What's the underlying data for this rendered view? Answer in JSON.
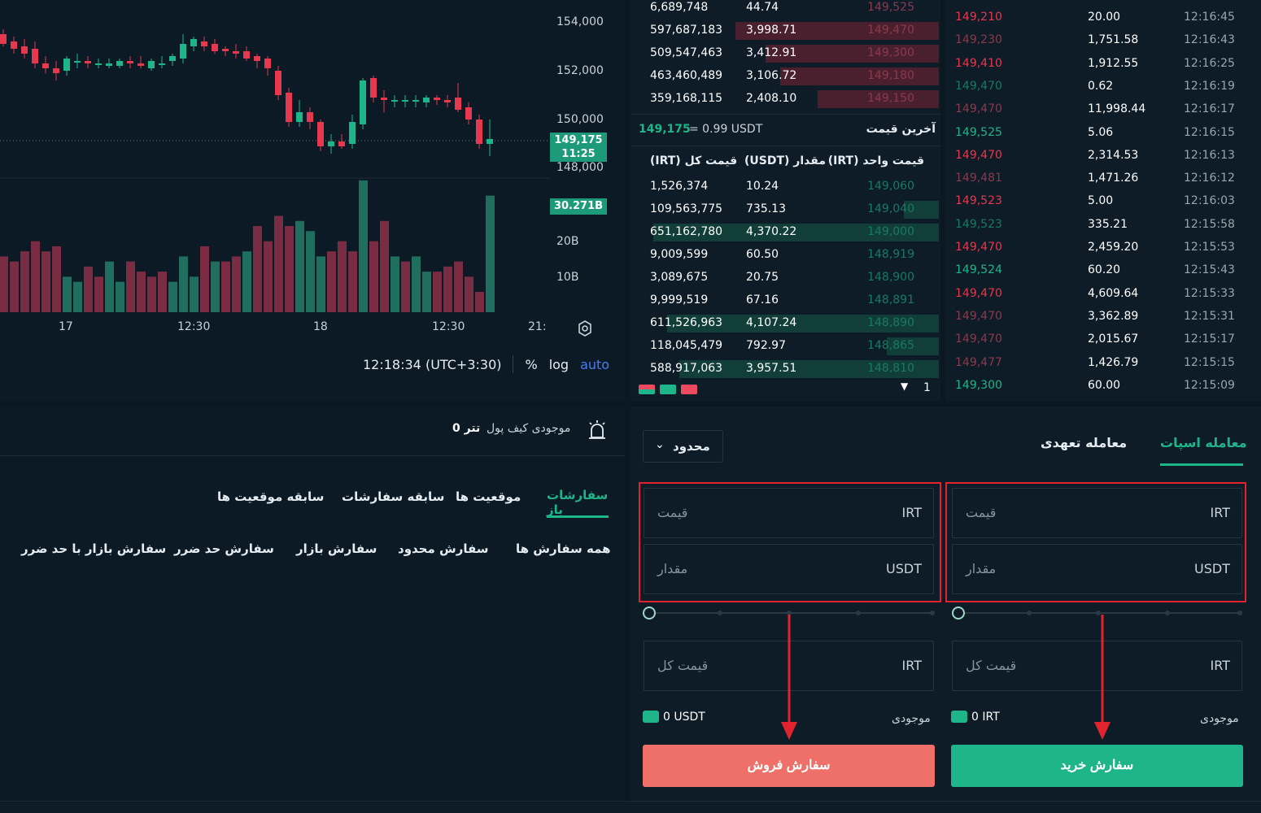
{
  "chart": {
    "price_axis": [
      "154,000",
      "152,000",
      "150,000",
      "148,000"
    ],
    "current_price": "149,175",
    "current_time": "11:25",
    "volume_axis": [
      "20B",
      "10B"
    ],
    "volume_current": "30.271B",
    "time_axis": [
      "17",
      "12:30",
      "18",
      "12:30",
      "21:"
    ],
    "clock": "12:18:34 (UTC+3:30)",
    "percent_label": "%",
    "log_label": "log",
    "auto_label": "auto"
  },
  "chart_data": {
    "type": "candlestick",
    "x": [
      "17",
      "12:30",
      "18",
      "12:30"
    ],
    "ylim": [
      147000,
      155000
    ],
    "candles": [
      {
        "o": 153500,
        "h": 153700,
        "c": 153100,
        "l": 153000
      },
      {
        "o": 153200,
        "h": 153400,
        "c": 152900,
        "l": 152700
      },
      {
        "o": 153000,
        "h": 153300,
        "c": 152700,
        "l": 152500
      },
      {
        "o": 152900,
        "h": 153200,
        "c": 152300,
        "l": 152100
      },
      {
        "o": 152300,
        "h": 152600,
        "c": 152100,
        "l": 151900
      },
      {
        "o": 152100,
        "h": 152400,
        "c": 151900,
        "l": 151600
      },
      {
        "o": 152000,
        "h": 152600,
        "c": 152500,
        "l": 151800
      },
      {
        "o": 152400,
        "h": 152700,
        "c": 152400,
        "l": 152100
      },
      {
        "o": 152400,
        "h": 152600,
        "c": 152300,
        "l": 152100
      },
      {
        "o": 152300,
        "h": 152500,
        "c": 152300,
        "l": 152100
      },
      {
        "o": 152200,
        "h": 152500,
        "c": 152300,
        "l": 152100
      },
      {
        "o": 152200,
        "h": 152500,
        "c": 152400,
        "l": 152100
      },
      {
        "o": 152400,
        "h": 152600,
        "c": 152300,
        "l": 152100
      },
      {
        "o": 152300,
        "h": 152600,
        "c": 152200,
        "l": 152100
      },
      {
        "o": 152100,
        "h": 152500,
        "c": 152400,
        "l": 152000
      },
      {
        "o": 152300,
        "h": 152600,
        "c": 152300,
        "l": 152100
      },
      {
        "o": 152400,
        "h": 152700,
        "c": 152600,
        "l": 152200
      },
      {
        "o": 152500,
        "h": 153500,
        "c": 153100,
        "l": 152300
      },
      {
        "o": 153000,
        "h": 153400,
        "c": 153300,
        "l": 152800
      },
      {
        "o": 153200,
        "h": 153400,
        "c": 153000,
        "l": 152800
      },
      {
        "o": 153100,
        "h": 153300,
        "c": 152800,
        "l": 152700
      },
      {
        "o": 152900,
        "h": 153000,
        "c": 152800,
        "l": 152600
      },
      {
        "o": 152800,
        "h": 153100,
        "c": 152700,
        "l": 152500
      },
      {
        "o": 152800,
        "h": 153000,
        "c": 152500,
        "l": 152400
      },
      {
        "o": 152600,
        "h": 152700,
        "c": 152400,
        "l": 152100
      },
      {
        "o": 152500,
        "h": 152600,
        "c": 152100,
        "l": 151800
      },
      {
        "o": 152000,
        "h": 152200,
        "c": 151000,
        "l": 150800
      },
      {
        "o": 151100,
        "h": 151300,
        "c": 149900,
        "l": 149700
      },
      {
        "o": 149900,
        "h": 150800,
        "c": 150300,
        "l": 149700
      },
      {
        "o": 150300,
        "h": 150500,
        "c": 149900,
        "l": 149600
      },
      {
        "o": 149900,
        "h": 150000,
        "c": 148900,
        "l": 148700
      },
      {
        "o": 148900,
        "h": 149400,
        "c": 149100,
        "l": 148600
      },
      {
        "o": 149100,
        "h": 149400,
        "c": 148900,
        "l": 148800
      },
      {
        "o": 149000,
        "h": 150200,
        "c": 149900,
        "l": 148800
      },
      {
        "o": 149800,
        "h": 151700,
        "c": 151600,
        "l": 149600
      },
      {
        "o": 151700,
        "h": 151800,
        "c": 150900,
        "l": 150700
      },
      {
        "o": 150900,
        "h": 151200,
        "c": 150800,
        "l": 150300
      },
      {
        "o": 150800,
        "h": 151000,
        "c": 150800,
        "l": 150500
      },
      {
        "o": 150800,
        "h": 151000,
        "c": 150800,
        "l": 150500
      },
      {
        "o": 150800,
        "h": 151000,
        "c": 150800,
        "l": 150500
      },
      {
        "o": 150700,
        "h": 151000,
        "c": 150900,
        "l": 150500
      },
      {
        "o": 150900,
        "h": 151000,
        "c": 150800,
        "l": 150600
      },
      {
        "o": 150800,
        "h": 151000,
        "c": 150700,
        "l": 150500
      },
      {
        "o": 150900,
        "h": 151500,
        "c": 150400,
        "l": 150300
      },
      {
        "o": 150500,
        "h": 150700,
        "c": 150000,
        "l": 149800
      },
      {
        "o": 150000,
        "h": 150200,
        "c": 149000,
        "l": 148800
      },
      {
        "o": 149000,
        "h": 150000,
        "c": 149200,
        "l": 148500
      }
    ],
    "volume": [
      {
        "v": 11,
        "up": false
      },
      {
        "v": 10,
        "up": false
      },
      {
        "v": 12,
        "up": false
      },
      {
        "v": 14,
        "up": false
      },
      {
        "v": 12,
        "up": false
      },
      {
        "v": 13,
        "up": false
      },
      {
        "v": 7,
        "up": true
      },
      {
        "v": 6,
        "up": true
      },
      {
        "v": 9,
        "up": false
      },
      {
        "v": 7,
        "up": false
      },
      {
        "v": 10,
        "up": true
      },
      {
        "v": 6,
        "up": true
      },
      {
        "v": 10,
        "up": false
      },
      {
        "v": 8,
        "up": false
      },
      {
        "v": 7,
        "up": false
      },
      {
        "v": 8,
        "up": false
      },
      {
        "v": 6,
        "up": true
      },
      {
        "v": 11,
        "up": true
      },
      {
        "v": 7,
        "up": true
      },
      {
        "v": 13,
        "up": false
      },
      {
        "v": 10,
        "up": true
      },
      {
        "v": 10,
        "up": false
      },
      {
        "v": 11,
        "up": false
      },
      {
        "v": 12,
        "up": true
      },
      {
        "v": 17,
        "up": false
      },
      {
        "v": 14,
        "up": false
      },
      {
        "v": 19,
        "up": false
      },
      {
        "v": 17,
        "up": false
      },
      {
        "v": 18,
        "up": true
      },
      {
        "v": 16,
        "up": true
      },
      {
        "v": 11,
        "up": true
      },
      {
        "v": 12,
        "up": false
      },
      {
        "v": 14,
        "up": false
      },
      {
        "v": 12,
        "up": false
      },
      {
        "v": 26,
        "up": true
      },
      {
        "v": 14,
        "up": false
      },
      {
        "v": 18,
        "up": false
      },
      {
        "v": 11,
        "up": true
      },
      {
        "v": 10,
        "up": false
      },
      {
        "v": 11,
        "up": true
      },
      {
        "v": 8,
        "up": true
      },
      {
        "v": 8,
        "up": false
      },
      {
        "v": 9,
        "up": false
      },
      {
        "v": 10,
        "up": false
      },
      {
        "v": 7,
        "up": false
      },
      {
        "v": 4,
        "up": false
      },
      {
        "v": 23,
        "up": true
      }
    ]
  },
  "orderbook": {
    "asks": [
      {
        "total": "6,689,748",
        "amount": "44.74",
        "price": "149,525",
        "fill": 0
      },
      {
        "total": "597,687,183",
        "amount": "3,998.71",
        "price": "149,470",
        "fill": 0.82
      },
      {
        "total": "509,547,463",
        "amount": "3,412.91",
        "price": "149,300",
        "fill": 0.7
      },
      {
        "total": "463,460,489",
        "amount": "3,106.72",
        "price": "149,180",
        "fill": 0.64
      },
      {
        "total": "359,168,115",
        "amount": "2,408.10",
        "price": "149,150",
        "fill": 0.49
      }
    ],
    "last_price": "149,175",
    "last_usdt": "= 0.99 USDT",
    "last_label": "آخرین قیمت",
    "headers": {
      "total": "(IRT) قیمت کل",
      "amount": "(USDT) مقدار",
      "price": "(IRT) قیمت واحد"
    },
    "bids": [
      {
        "total": "1,526,374",
        "amount": "10.24",
        "price": "149,060",
        "fill": 0
      },
      {
        "total": "109,563,775",
        "amount": "735.13",
        "price": "149,040",
        "fill": 0.12
      },
      {
        "total": "651,162,780",
        "amount": "4,370.22",
        "price": "149,000",
        "fill": 0.99
      },
      {
        "total": "9,009,599",
        "amount": "60.50",
        "price": "148,919",
        "fill": 0
      },
      {
        "total": "3,089,675",
        "amount": "20.75",
        "price": "148,900",
        "fill": 0
      },
      {
        "total": "9,999,519",
        "amount": "67.16",
        "price": "148,891",
        "fill": 0
      },
      {
        "total": "611,526,963",
        "amount": "4,107.24",
        "price": "148,890",
        "fill": 0.94
      },
      {
        "total": "118,045,479",
        "amount": "792.97",
        "price": "148,865",
        "fill": 0.18
      },
      {
        "total": "588,917,063",
        "amount": "3,957.51",
        "price": "148,810",
        "fill": 0.9
      }
    ],
    "grouping": "1"
  },
  "trades": [
    {
      "price": "149,210",
      "amount": "20.00",
      "time": "12:16:45",
      "side": "red"
    },
    {
      "price": "149,230",
      "amount": "1,751.58",
      "time": "12:16:43",
      "side": "dred"
    },
    {
      "price": "149,410",
      "amount": "1,912.55",
      "time": "12:16:25",
      "side": "red"
    },
    {
      "price": "149,470",
      "amount": "0.62",
      "time": "12:16:19",
      "side": "dgreen"
    },
    {
      "price": "149,470",
      "amount": "11,998.44",
      "time": "12:16:17",
      "side": "dred"
    },
    {
      "price": "149,525",
      "amount": "5.06",
      "time": "12:16:15",
      "side": "green"
    },
    {
      "price": "149,470",
      "amount": "2,314.53",
      "time": "12:16:13",
      "side": "red"
    },
    {
      "price": "149,481",
      "amount": "1,471.26",
      "time": "12:16:12",
      "side": "dred"
    },
    {
      "price": "149,523",
      "amount": "5.00",
      "time": "12:16:03",
      "side": "red"
    },
    {
      "price": "149,523",
      "amount": "335.21",
      "time": "12:15:58",
      "side": "dgreen"
    },
    {
      "price": "149,470",
      "amount": "2,459.20",
      "time": "12:15:53",
      "side": "red"
    },
    {
      "price": "149,524",
      "amount": "60.20",
      "time": "12:15:43",
      "side": "green"
    },
    {
      "price": "149,470",
      "amount": "4,609.64",
      "time": "12:15:33",
      "side": "red"
    },
    {
      "price": "149,470",
      "amount": "3,362.89",
      "time": "12:15:31",
      "side": "dred"
    },
    {
      "price": "149,470",
      "amount": "2,015.67",
      "time": "12:15:17",
      "side": "dred"
    },
    {
      "price": "149,477",
      "amount": "1,426.79",
      "time": "12:15:15",
      "side": "dred"
    },
    {
      "price": "149,300",
      "amount": "60.00",
      "time": "12:15:09",
      "side": "green"
    }
  ],
  "orders": {
    "wallet_label": "موجودی کیف پول",
    "wallet_value": "0 تتر",
    "tabs": [
      "سفارشات باز",
      "موقعیت ها",
      "سابقه سفارشات",
      "سابقه موقعیت ها"
    ],
    "filters": [
      "همه سفارش ها",
      "سفارش محدود",
      "سفارش بازار",
      "سفارش حد ضرر",
      "سفارش بازار با حد ضرر"
    ]
  },
  "trade": {
    "tab_spot": "معامله اسپات",
    "tab_futures": "معامله تعهدی",
    "order_type": "محدود",
    "price_ph": "قیمت",
    "amount_ph": "مقدار",
    "total_ph": "قیمت کل",
    "unit_irt": "IRT",
    "unit_usdt": "USDT",
    "balance_label": "موجودی",
    "sell_balance": "0 USDT",
    "buy_balance": "0 IRT",
    "sell_button": "سفارش فروش",
    "buy_button": "سفارش خرید"
  },
  "colors": {
    "buy": "#1fb58a",
    "sell": "#ef7069",
    "accent": "#1fb58a",
    "annotation": "#e0232e"
  }
}
